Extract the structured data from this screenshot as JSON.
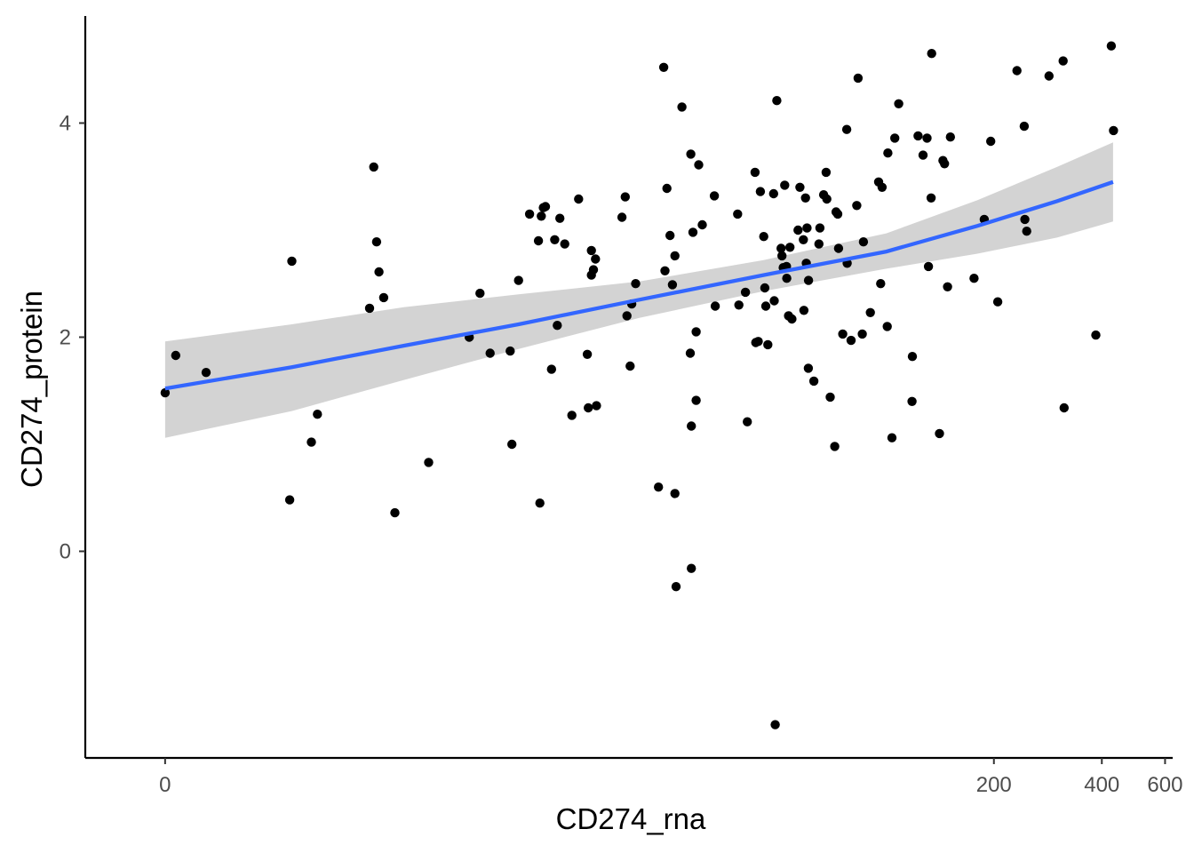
{
  "chart_data": {
    "type": "scatter",
    "title": "",
    "xlabel": "CD274_rna",
    "ylabel": "CD274_protein",
    "x_scale": "log1p",
    "x_ticks": [
      0,
      200,
      400,
      600
    ],
    "x_tick_labels": [
      "0",
      "200",
      "400",
      "600"
    ],
    "y_ticks": [
      0,
      2,
      4
    ],
    "y_tick_labels": [
      "0",
      "2",
      "4"
    ],
    "xlim": [
      -0.4,
      630
    ],
    "ylim": [
      -1.93,
      5.0
    ],
    "grid": false,
    "legend": "none",
    "point_color": "#000000",
    "fit_line_color": "#3366ff",
    "ci_band_color": "#d3d3d3",
    "fit": {
      "method": "lm",
      "x": [
        0,
        1.25,
        3.6,
        8.6,
        19.8,
        45,
        100,
        180,
        300,
        430
      ],
      "y": [
        1.52,
        1.72,
        1.92,
        2.12,
        2.35,
        2.58,
        2.8,
        3.04,
        3.27,
        3.45
      ],
      "ci_lower": [
        1.06,
        1.31,
        1.6,
        1.89,
        2.18,
        2.43,
        2.64,
        2.78,
        2.93,
        3.08
      ],
      "ci_upper": [
        1.96,
        2.12,
        2.28,
        2.4,
        2.52,
        2.72,
        2.97,
        3.28,
        3.59,
        3.82
      ]
    },
    "points": [
      {
        "x": 0.0,
        "y": 1.48
      },
      {
        "x": 0.07,
        "y": 1.83
      },
      {
        "x": 0.3,
        "y": 1.67
      },
      {
        "x": 1.25,
        "y": 2.71
      },
      {
        "x": 1.22,
        "y": 0.48
      },
      {
        "x": 1.55,
        "y": 1.02
      },
      {
        "x": 1.65,
        "y": 1.28
      },
      {
        "x": 2.7,
        "y": 2.27
      },
      {
        "x": 2.8,
        "y": 3.59
      },
      {
        "x": 2.87,
        "y": 2.89
      },
      {
        "x": 2.93,
        "y": 2.61
      },
      {
        "x": 3.05,
        "y": 2.37
      },
      {
        "x": 3.35,
        "y": 0.36
      },
      {
        "x": 4.4,
        "y": 0.83
      },
      {
        "x": 6.0,
        "y": 2.0
      },
      {
        "x": 6.5,
        "y": 2.41
      },
      {
        "x": 7.0,
        "y": 1.85
      },
      {
        "x": 8.1,
        "y": 1.87
      },
      {
        "x": 8.2,
        "y": 1.0
      },
      {
        "x": 8.6,
        "y": 2.53
      },
      {
        "x": 9.3,
        "y": 3.15
      },
      {
        "x": 9.9,
        "y": 2.9
      },
      {
        "x": 10.0,
        "y": 0.45
      },
      {
        "x": 10.1,
        "y": 3.13
      },
      {
        "x": 10.25,
        "y": 3.21
      },
      {
        "x": 10.4,
        "y": 3.22
      },
      {
        "x": 10.85,
        "y": 1.7
      },
      {
        "x": 11.1,
        "y": 2.91
      },
      {
        "x": 11.3,
        "y": 2.11
      },
      {
        "x": 11.5,
        "y": 3.11
      },
      {
        "x": 11.9,
        "y": 2.87
      },
      {
        "x": 12.5,
        "y": 1.27
      },
      {
        "x": 13.1,
        "y": 3.29
      },
      {
        "x": 13.9,
        "y": 1.84
      },
      {
        "x": 14.0,
        "y": 1.34
      },
      {
        "x": 14.3,
        "y": 2.81
      },
      {
        "x": 14.3,
        "y": 2.58
      },
      {
        "x": 14.5,
        "y": 2.63
      },
      {
        "x": 14.7,
        "y": 2.73
      },
      {
        "x": 14.8,
        "y": 1.36
      },
      {
        "x": 17.6,
        "y": 3.12
      },
      {
        "x": 18.0,
        "y": 3.31
      },
      {
        "x": 18.2,
        "y": 2.2
      },
      {
        "x": 18.6,
        "y": 1.73
      },
      {
        "x": 18.8,
        "y": 2.31
      },
      {
        "x": 19.3,
        "y": 2.5
      },
      {
        "x": 22.5,
        "y": 0.6
      },
      {
        "x": 23.3,
        "y": 4.52
      },
      {
        "x": 23.5,
        "y": 2.62
      },
      {
        "x": 23.8,
        "y": 3.39
      },
      {
        "x": 24.3,
        "y": 2.95
      },
      {
        "x": 24.7,
        "y": 2.49
      },
      {
        "x": 25.1,
        "y": 2.76
      },
      {
        "x": 25.1,
        "y": 0.54
      },
      {
        "x": 25.3,
        "y": -0.33
      },
      {
        "x": 26.3,
        "y": 4.15
      },
      {
        "x": 27.9,
        "y": 3.71
      },
      {
        "x": 27.8,
        "y": 1.85
      },
      {
        "x": 28.0,
        "y": 1.17
      },
      {
        "x": 28.0,
        "y": -0.16
      },
      {
        "x": 28.3,
        "y": 2.98
      },
      {
        "x": 28.9,
        "y": 2.05
      },
      {
        "x": 28.9,
        "y": 1.41
      },
      {
        "x": 29.4,
        "y": 3.61
      },
      {
        "x": 30.1,
        "y": 3.05
      },
      {
        "x": 32.6,
        "y": 3.32
      },
      {
        "x": 32.8,
        "y": 2.29
      },
      {
        "x": 38.0,
        "y": 3.15
      },
      {
        "x": 38.3,
        "y": 2.3
      },
      {
        "x": 40.0,
        "y": 2.42
      },
      {
        "x": 40.5,
        "y": 1.21
      },
      {
        "x": 42.6,
        "y": 3.54
      },
      {
        "x": 42.8,
        "y": 1.95
      },
      {
        "x": 43.5,
        "y": 1.96
      },
      {
        "x": 44.1,
        "y": 3.36
      },
      {
        "x": 45.1,
        "y": 2.94
      },
      {
        "x": 45.4,
        "y": 2.46
      },
      {
        "x": 45.7,
        "y": 2.29
      },
      {
        "x": 46.3,
        "y": 1.93
      },
      {
        "x": 48.1,
        "y": 3.34
      },
      {
        "x": 48.3,
        "y": 2.34
      },
      {
        "x": 48.6,
        "y": -1.62
      },
      {
        "x": 49.1,
        "y": 4.21
      },
      {
        "x": 50.5,
        "y": 2.83
      },
      {
        "x": 50.8,
        "y": 2.76
      },
      {
        "x": 51.2,
        "y": 2.65
      },
      {
        "x": 51.7,
        "y": 3.42
      },
      {
        "x": 52.3,
        "y": 2.66
      },
      {
        "x": 52.4,
        "y": 2.55
      },
      {
        "x": 53.0,
        "y": 2.2
      },
      {
        "x": 53.5,
        "y": 2.84
      },
      {
        "x": 54.2,
        "y": 2.17
      },
      {
        "x": 56.4,
        "y": 3.0
      },
      {
        "x": 57.1,
        "y": 3.4
      },
      {
        "x": 58.4,
        "y": 2.91
      },
      {
        "x": 58.6,
        "y": 2.25
      },
      {
        "x": 59.2,
        "y": 3.3
      },
      {
        "x": 59.5,
        "y": 2.69
      },
      {
        "x": 59.8,
        "y": 3.02
      },
      {
        "x": 60.3,
        "y": 1.71
      },
      {
        "x": 60.4,
        "y": 2.53
      },
      {
        "x": 62.5,
        "y": 1.59
      },
      {
        "x": 64.6,
        "y": 2.87
      },
      {
        "x": 65.0,
        "y": 3.02
      },
      {
        "x": 66.6,
        "y": 3.33
      },
      {
        "x": 67.7,
        "y": 3.54
      },
      {
        "x": 68.0,
        "y": 3.29
      },
      {
        "x": 69.5,
        "y": 1.44
      },
      {
        "x": 71.6,
        "y": 0.98
      },
      {
        "x": 72.2,
        "y": 3.17
      },
      {
        "x": 73.0,
        "y": 3.15
      },
      {
        "x": 73.4,
        "y": 2.83
      },
      {
        "x": 75.4,
        "y": 2.03
      },
      {
        "x": 77.4,
        "y": 3.94
      },
      {
        "x": 77.6,
        "y": 2.69
      },
      {
        "x": 79.6,
        "y": 1.97
      },
      {
        "x": 82.6,
        "y": 3.23
      },
      {
        "x": 83.3,
        "y": 4.42
      },
      {
        "x": 85.6,
        "y": 2.03
      },
      {
        "x": 86.2,
        "y": 2.89
      },
      {
        "x": 90.2,
        "y": 2.23
      },
      {
        "x": 95.1,
        "y": 3.45
      },
      {
        "x": 96.4,
        "y": 2.5
      },
      {
        "x": 97.3,
        "y": 3.4
      },
      {
        "x": 100.6,
        "y": 2.1
      },
      {
        "x": 101.0,
        "y": 3.72
      },
      {
        "x": 103.7,
        "y": 1.06
      },
      {
        "x": 105.6,
        "y": 3.86
      },
      {
        "x": 108.3,
        "y": 4.18
      },
      {
        "x": 118.0,
        "y": 1.4
      },
      {
        "x": 118.3,
        "y": 1.82
      },
      {
        "x": 122.7,
        "y": 3.88
      },
      {
        "x": 126.7,
        "y": 3.7
      },
      {
        "x": 130.0,
        "y": 3.86
      },
      {
        "x": 131.2,
        "y": 2.66
      },
      {
        "x": 133.5,
        "y": 3.3
      },
      {
        "x": 134.0,
        "y": 4.65
      },
      {
        "x": 140.9,
        "y": 1.1
      },
      {
        "x": 144.1,
        "y": 3.65
      },
      {
        "x": 145.6,
        "y": 3.62
      },
      {
        "x": 148.4,
        "y": 2.47
      },
      {
        "x": 151.2,
        "y": 3.87
      },
      {
        "x": 176.0,
        "y": 2.55
      },
      {
        "x": 188.0,
        "y": 3.1
      },
      {
        "x": 196.0,
        "y": 3.83
      },
      {
        "x": 205.0,
        "y": 2.33
      },
      {
        "x": 232.0,
        "y": 4.49
      },
      {
        "x": 243.0,
        "y": 3.97
      },
      {
        "x": 244.0,
        "y": 3.1
      },
      {
        "x": 247.0,
        "y": 2.99
      },
      {
        "x": 285.0,
        "y": 4.44
      },
      {
        "x": 312.0,
        "y": 4.58
      },
      {
        "x": 314.0,
        "y": 1.34
      },
      {
        "x": 385.0,
        "y": 2.02
      },
      {
        "x": 425.0,
        "y": 4.72
      },
      {
        "x": 431.0,
        "y": 3.93
      }
    ]
  }
}
